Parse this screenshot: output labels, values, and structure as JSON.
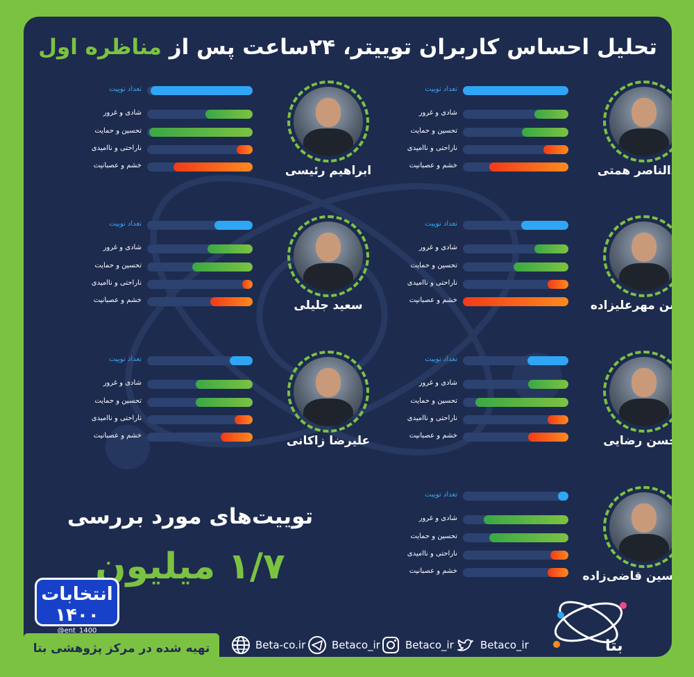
{
  "title_main": "تحلیل احساس کاربران توییتر، ۲۴ساعت پس از ",
  "title_highlight": "مناظره اول",
  "labels": {
    "count": "تعداد توییت",
    "joy": "شادی و غرور",
    "praise": "تحسین و حمایت",
    "sad": "ناراحتی و ناامیدی",
    "anger": "خشم و عصبانیت"
  },
  "candidates": [
    {
      "name": "ابراهیم رئیسی",
      "values": {
        "count": 0.97,
        "joy": 0.45,
        "praise": 0.98,
        "sad": 0.15,
        "anger": 0.75
      }
    },
    {
      "name": "عبدالناصر همتی",
      "values": {
        "count": 1.0,
        "joy": 0.32,
        "praise": 0.44,
        "sad": 0.24,
        "anger": 0.75
      }
    },
    {
      "name": "سعید جلیلی",
      "values": {
        "count": 0.36,
        "joy": 0.43,
        "praise": 0.57,
        "sad": 0.1,
        "anger": 0.4
      }
    },
    {
      "name": "محسن مهرعلیزاده",
      "values": {
        "count": 0.45,
        "joy": 0.32,
        "praise": 0.52,
        "sad": 0.2,
        "anger": 1.0
      }
    },
    {
      "name": "علیرضا زاکانی",
      "values": {
        "count": 0.22,
        "joy": 0.54,
        "praise": 0.54,
        "sad": 0.17,
        "anger": 0.3
      }
    },
    {
      "name": "محسن رضایی",
      "values": {
        "count": 0.39,
        "joy": 0.38,
        "praise": 0.88,
        "sad": 0.2,
        "anger": 0.38
      }
    },
    {
      "name": "امیرحسین قاضی‌زاده",
      "values": {
        "count": 0.1,
        "joy": 0.8,
        "praise": 0.75,
        "sad": 0.17,
        "anger": 0.2
      }
    }
  ],
  "total_label": "توییت‌های مورد بررسی",
  "total_value": "۱/۷ میلیون",
  "logo_ent": {
    "text": "انتخابات ۱۴۰۰",
    "handle": "@ent_1400"
  },
  "footer": {
    "credit": "تهیه شده در مرکز پژوهشی بتا",
    "website": "Beta-co.ir",
    "telegram": "Betaco_ir",
    "instagram": "Betaco_ir",
    "twitter": "Betaco_ir",
    "brand": "بتا"
  },
  "colors": {
    "background": "#7cc242",
    "panel": "#1d2b4f",
    "accent_green": "#7cc242",
    "count_blue": "#2fa6f5",
    "anger_orange": "#ff6a1f"
  },
  "icons": [
    "globe-icon",
    "telegram-icon",
    "instagram-icon",
    "twitter-icon"
  ]
}
